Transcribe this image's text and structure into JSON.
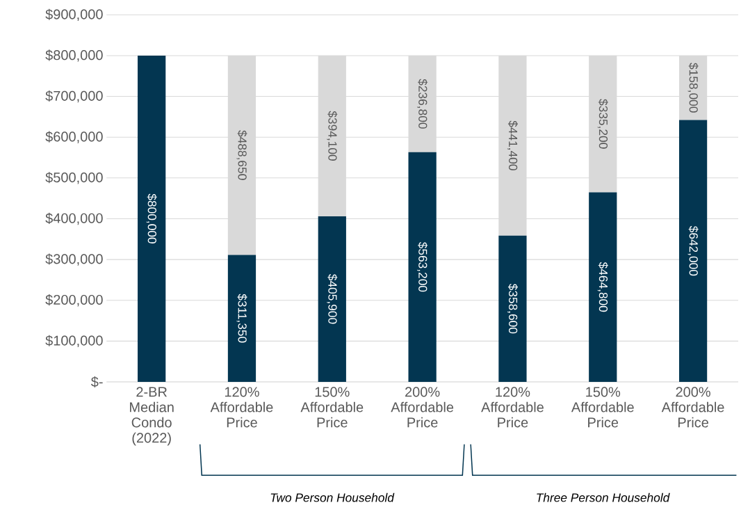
{
  "chart_data": {
    "type": "bar",
    "stacked": true,
    "grid": "y",
    "categories": [
      "2-BR Median Condo (2022)",
      "120% Affordable Price",
      "150% Affordable Price",
      "200% Affordable Price",
      "120% Affordable Price",
      "150% Affordable Price",
      "200% Affordable Price"
    ],
    "series": [
      {
        "color": "#033651",
        "values": [
          800000,
          311350,
          405900,
          563200,
          358600,
          464800,
          642000
        ],
        "value_labels": [
          "$800,000",
          "$311,350",
          "$405,900",
          "$563,200",
          "$358,600",
          "$464,800",
          "$642,000"
        ]
      },
      {
        "color": "#d9d9d9",
        "values": [
          null,
          488650,
          394100,
          236800,
          441400,
          335200,
          158000
        ],
        "value_labels": [
          null,
          "$488,650",
          "$394,100",
          "$236,800",
          "$441,400",
          "$335,200",
          "$158,000"
        ]
      }
    ],
    "ylim": [
      0,
      900000
    ],
    "yticks": [
      {
        "value": 0,
        "label": "$-"
      },
      {
        "value": 100000,
        "label": "$100,000"
      },
      {
        "value": 200000,
        "label": "$200,000"
      },
      {
        "value": 300000,
        "label": "$300,000"
      },
      {
        "value": 400000,
        "label": "$400,000"
      },
      {
        "value": 500000,
        "label": "$500,000"
      },
      {
        "value": 600000,
        "label": "$600,000"
      },
      {
        "value": 700000,
        "label": "$700,000"
      },
      {
        "value": 800000,
        "label": "$800,000"
      },
      {
        "value": 900000,
        "label": "$900,000"
      }
    ],
    "annotations": [
      "*Two Person Household*",
      "*Three Person Household*"
    ]
  }
}
